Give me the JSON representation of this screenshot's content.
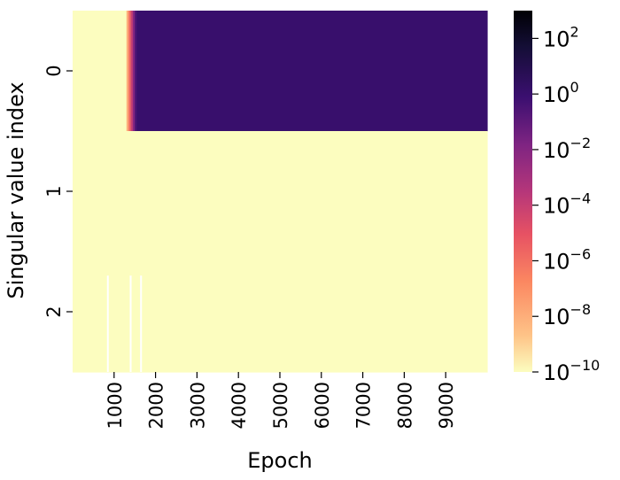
{
  "chart_data": {
    "type": "heatmap",
    "xlabel": "Epoch",
    "ylabel": "Singular value index",
    "x_ticks": [
      1000,
      2000,
      3000,
      4000,
      5000,
      6000,
      7000,
      8000,
      9000
    ],
    "x_range": [
      0,
      10000
    ],
    "y_categories": [
      "0",
      "1",
      "2"
    ],
    "color_scale": "log",
    "colormap": "magma",
    "colorbar_range": [
      1e-10,
      1000
    ],
    "colorbar_ticks": [
      {
        "base": "10",
        "exp": "2",
        "value": 100
      },
      {
        "base": "10",
        "exp": "0",
        "value": 1
      },
      {
        "base": "10",
        "exp": "−2",
        "value": 0.01
      },
      {
        "base": "10",
        "exp": "−4",
        "value": 0.0001
      },
      {
        "base": "10",
        "exp": "−6",
        "value": 1e-06
      },
      {
        "base": "10",
        "exp": "−8",
        "value": 1e-08
      },
      {
        "base": "10",
        "exp": "−10",
        "value": 1e-10
      }
    ],
    "rows": [
      {
        "index": "0",
        "segments": [
          {
            "from": 0,
            "to": 1300,
            "value": 1e-10
          },
          {
            "from": 1300,
            "to": 1350,
            "value": 1e-08
          },
          {
            "from": 1350,
            "to": 1400,
            "value": 1e-06
          },
          {
            "from": 1400,
            "to": 1450,
            "value": 0.0001
          },
          {
            "from": 1450,
            "to": 1500,
            "value": 0.01
          },
          {
            "from": 1500,
            "to": 1550,
            "value": 0.3
          },
          {
            "from": 1550,
            "to": 10000,
            "value": 1
          }
        ]
      },
      {
        "index": "1",
        "segments": [
          {
            "from": 0,
            "to": 10000,
            "value": 1e-10
          }
        ]
      },
      {
        "index": "2",
        "segments": [
          {
            "from": 0,
            "to": 10000,
            "value": 1e-10
          }
        ],
        "gaps": [
          850,
          1400,
          1650
        ]
      }
    ]
  }
}
